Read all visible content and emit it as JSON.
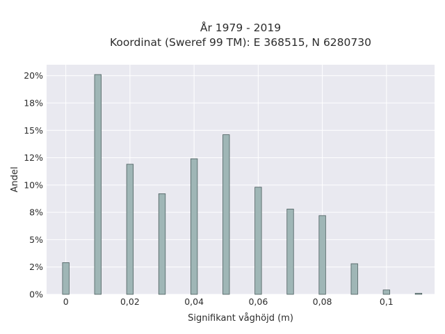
{
  "chart_data": {
    "type": "bar",
    "title_line1": "År 1979 - 2019",
    "title_line2": "Koordinat (Sweref 99 TM): E 368515, N 6280730",
    "xlabel": "Signifikant våghöjd (m)",
    "ylabel": "Andel",
    "x": [
      0,
      0.01,
      0.02,
      0.03,
      0.04,
      0.05,
      0.06,
      0.07,
      0.08,
      0.09,
      0.1,
      0.11
    ],
    "values": [
      2.9,
      20.1,
      11.9,
      9.2,
      12.4,
      14.6,
      9.8,
      7.8,
      7.2,
      2.8,
      0.4,
      0.1
    ],
    "xlim": [
      -0.006,
      0.115
    ],
    "ylim": [
      0,
      21
    ],
    "x_ticks": [
      {
        "value": 0,
        "label": "0"
      },
      {
        "value": 0.02,
        "label": "0,02"
      },
      {
        "value": 0.04,
        "label": "0,04"
      },
      {
        "value": 0.06,
        "label": "0,06"
      },
      {
        "value": 0.08,
        "label": "0,08"
      },
      {
        "value": 0.1,
        "label": "0,1"
      }
    ],
    "y_ticks": [
      {
        "value": 0,
        "label": "0%"
      },
      {
        "value": 2.5,
        "label": "2%"
      },
      {
        "value": 5,
        "label": "5%"
      },
      {
        "value": 7.5,
        "label": "8%"
      },
      {
        "value": 10,
        "label": "10%"
      },
      {
        "value": 12.5,
        "label": "12%"
      },
      {
        "value": 15,
        "label": "15%"
      },
      {
        "value": 17.5,
        "label": "18%"
      },
      {
        "value": 20,
        "label": "20%"
      }
    ],
    "grid": true,
    "colors": {
      "bar_fill": "#9fb6b6",
      "bar_stroke": "#4a5d5d",
      "plot_bg": "#e9e9f0",
      "grid": "#ffffff"
    }
  }
}
